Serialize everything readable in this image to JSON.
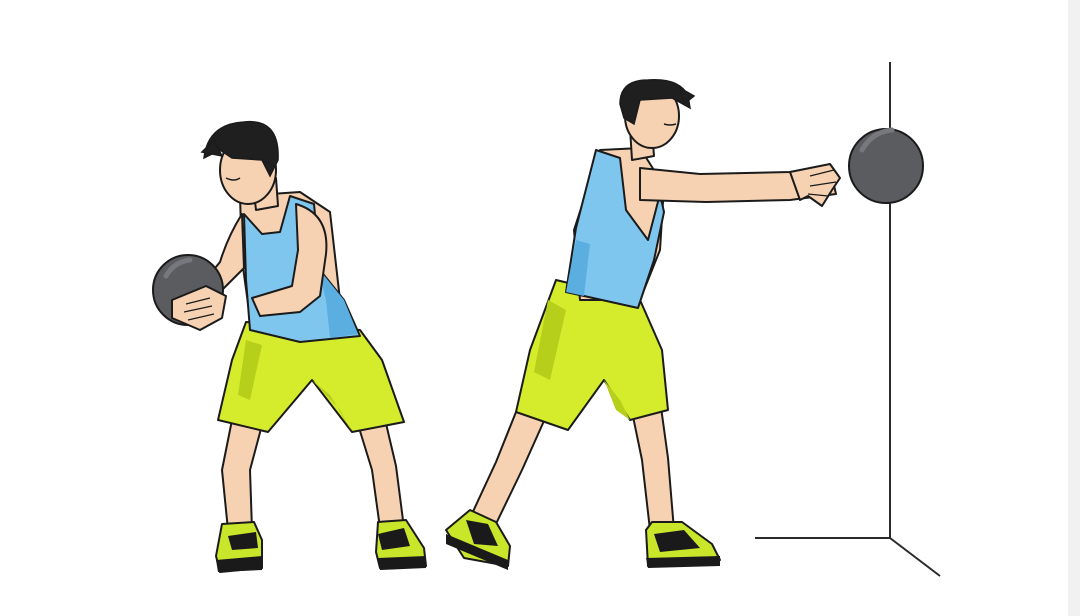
{
  "illustration": {
    "subject": "medicine-ball-rotational-throw",
    "figures": [
      "athlete-wind-up",
      "athlete-throw"
    ],
    "colors": {
      "background": "#ffffff",
      "edge_strip": "#f1f1f1",
      "skin": "#f7d2b2",
      "skin_shadow": "#e8b48c",
      "hair": "#1f1f1f",
      "tank_top": "#7fc6ee",
      "tank_top_shadow": "#5aaee0",
      "shorts": "#d4ec2c",
      "shorts_shadow": "#b6cf1b",
      "shoe": "#c9e62a",
      "shoe_dark": "#1a1a1a",
      "ball": "#5b5c60",
      "ball_highlight": "#77787d",
      "outline": "#1b1b1b",
      "wall_line": "#2a2a2a"
    }
  }
}
